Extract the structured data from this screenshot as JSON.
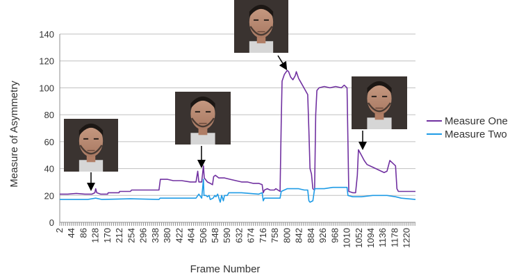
{
  "chart_data": {
    "type": "line",
    "title": "",
    "xlabel": "Frame Number",
    "ylabel": "Measure of Asymmetry",
    "ylim": [
      0,
      140
    ],
    "yticks": [
      0,
      20,
      40,
      60,
      80,
      100,
      120,
      140
    ],
    "xlim": [
      2,
      1250
    ],
    "xticks": [
      2,
      44,
      86,
      128,
      170,
      212,
      254,
      296,
      338,
      380,
      422,
      464,
      506,
      548,
      590,
      632,
      674,
      716,
      758,
      800,
      842,
      884,
      926,
      968,
      1010,
      1052,
      1094,
      1136,
      1178,
      1220
    ],
    "grid": "horizontal",
    "legend_position": "right",
    "colors": {
      "measure_one": "#7030a0",
      "measure_two": "#1e9be6"
    },
    "series": [
      {
        "name": "Measure One",
        "points": [
          [
            2,
            21
          ],
          [
            30,
            21
          ],
          [
            60,
            21.5
          ],
          [
            90,
            21
          ],
          [
            115,
            21
          ],
          [
            125,
            22
          ],
          [
            128,
            25
          ],
          [
            132,
            22
          ],
          [
            145,
            21
          ],
          [
            170,
            21
          ],
          [
            172,
            22
          ],
          [
            210,
            22
          ],
          [
            212,
            23
          ],
          [
            250,
            23
          ],
          [
            254,
            24
          ],
          [
            340,
            24
          ],
          [
            350,
            24
          ],
          [
            355,
            32
          ],
          [
            380,
            32
          ],
          [
            400,
            31
          ],
          [
            430,
            31
          ],
          [
            460,
            30
          ],
          [
            480,
            30
          ],
          [
            486,
            38
          ],
          [
            490,
            30
          ],
          [
            500,
            30
          ],
          [
            506,
            42
          ],
          [
            509,
            33
          ],
          [
            520,
            30
          ],
          [
            530,
            29
          ],
          [
            538,
            28
          ],
          [
            542,
            34
          ],
          [
            548,
            35
          ],
          [
            560,
            33
          ],
          [
            580,
            33
          ],
          [
            600,
            32
          ],
          [
            620,
            31
          ],
          [
            640,
            30
          ],
          [
            660,
            30
          ],
          [
            680,
            29
          ],
          [
            700,
            29
          ],
          [
            712,
            28
          ],
          [
            716,
            22
          ],
          [
            720,
            24
          ],
          [
            730,
            25
          ],
          [
            740,
            24
          ],
          [
            755,
            24
          ],
          [
            760,
            25
          ],
          [
            775,
            23
          ],
          [
            779,
            75
          ],
          [
            782,
            105
          ],
          [
            790,
            110
          ],
          [
            800,
            113
          ],
          [
            805,
            112
          ],
          [
            812,
            108
          ],
          [
            820,
            106
          ],
          [
            828,
            109
          ],
          [
            832,
            112
          ],
          [
            840,
            107
          ],
          [
            848,
            104
          ],
          [
            856,
            101
          ],
          [
            864,
            98
          ],
          [
            872,
            95
          ],
          [
            876,
            68
          ],
          [
            880,
            40
          ],
          [
            885,
            36
          ],
          [
            890,
            25
          ],
          [
            896,
            24
          ],
          [
            900,
            80
          ],
          [
            904,
            98
          ],
          [
            912,
            100
          ],
          [
            930,
            101
          ],
          [
            950,
            100
          ],
          [
            970,
            101
          ],
          [
            990,
            100
          ],
          [
            1000,
            102
          ],
          [
            1010,
            100
          ],
          [
            1013,
            60
          ],
          [
            1016,
            23
          ],
          [
            1030,
            22
          ],
          [
            1040,
            22
          ],
          [
            1046,
            35
          ],
          [
            1050,
            54
          ],
          [
            1060,
            50
          ],
          [
            1070,
            46
          ],
          [
            1080,
            43
          ],
          [
            1100,
            41
          ],
          [
            1120,
            39
          ],
          [
            1140,
            37
          ],
          [
            1150,
            38
          ],
          [
            1160,
            46
          ],
          [
            1170,
            44
          ],
          [
            1180,
            42
          ],
          [
            1185,
            25
          ],
          [
            1190,
            23
          ],
          [
            1220,
            23
          ],
          [
            1250,
            23
          ]
        ]
      },
      {
        "name": "Measure Two",
        "points": [
          [
            2,
            17
          ],
          [
            100,
            17
          ],
          [
            128,
            18
          ],
          [
            150,
            17
          ],
          [
            250,
            17.5
          ],
          [
            350,
            17
          ],
          [
            354,
            18
          ],
          [
            430,
            18
          ],
          [
            470,
            18
          ],
          [
            480,
            18
          ],
          [
            490,
            21
          ],
          [
            500,
            18
          ],
          [
            506,
            32
          ],
          [
            508,
            20
          ],
          [
            515,
            20
          ],
          [
            520,
            19
          ],
          [
            526,
            20
          ],
          [
            530,
            17
          ],
          [
            540,
            18
          ],
          [
            546,
            20
          ],
          [
            550,
            19
          ],
          [
            556,
            21
          ],
          [
            562,
            17
          ],
          [
            565,
            15
          ],
          [
            570,
            20
          ],
          [
            576,
            16
          ],
          [
            580,
            20
          ],
          [
            590,
            20
          ],
          [
            595,
            22
          ],
          [
            640,
            22
          ],
          [
            700,
            21
          ],
          [
            712,
            22
          ],
          [
            716,
            16
          ],
          [
            720,
            18
          ],
          [
            760,
            18
          ],
          [
            775,
            18
          ],
          [
            779,
            23
          ],
          [
            800,
            25
          ],
          [
            840,
            25
          ],
          [
            860,
            24
          ],
          [
            872,
            24
          ],
          [
            876,
            16
          ],
          [
            880,
            15
          ],
          [
            890,
            16
          ],
          [
            896,
            25
          ],
          [
            930,
            25
          ],
          [
            960,
            26
          ],
          [
            1010,
            26
          ],
          [
            1013,
            20
          ],
          [
            1030,
            19
          ],
          [
            1060,
            19
          ],
          [
            1100,
            20
          ],
          [
            1150,
            20
          ],
          [
            1180,
            19
          ],
          [
            1200,
            18
          ],
          [
            1250,
            17
          ]
        ]
      }
    ],
    "annotations": [
      {
        "label": "face-image",
        "frame": 128,
        "value": 22
      },
      {
        "label": "face-image",
        "frame": 506,
        "value": 42
      },
      {
        "label": "face-image",
        "frame": 800,
        "value": 113
      },
      {
        "label": "face-image",
        "frame": 1052,
        "value": 54
      }
    ]
  }
}
